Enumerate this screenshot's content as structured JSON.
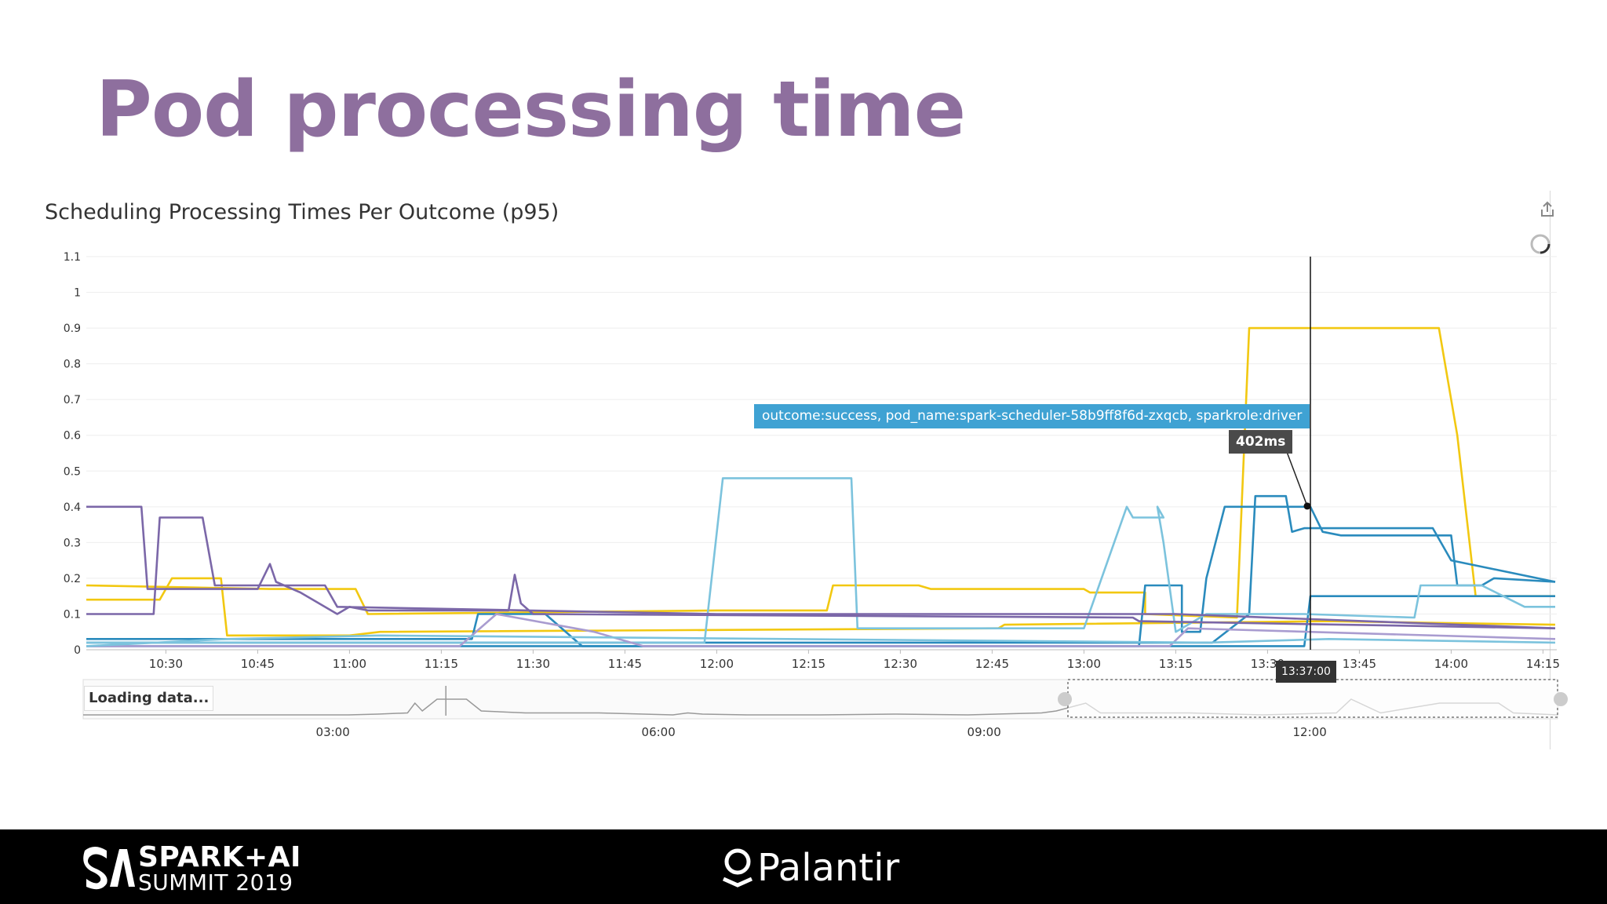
{
  "slide": {
    "title": "Pod processing time"
  },
  "panel": {
    "title": "Scheduling Processing Times Per Outcome (p95)",
    "tooltip_series": "outcome:success, pod_name:spark-scheduler-58b9ff8f6d-zxqcb, sparkrole:driver",
    "tooltip_value": "402ms",
    "cursor_time": "13:37:00",
    "loading_text": "Loading data...",
    "icons": {
      "export": "export-icon",
      "spinner": "loading-spinner-icon"
    }
  },
  "footer": {
    "summit_line1": "SPARK+AI",
    "summit_line2": "SUMMIT 2019",
    "brand": "Palantir",
    "background": "#000000"
  },
  "colors": {
    "title": "#8e6f9e",
    "yellow": "#f2c811",
    "blue": "#2a8bbd",
    "light_blue": "#7cc3dd",
    "purple": "#7b67a8",
    "lavender": "#a99cd0"
  },
  "chart_data": {
    "type": "line",
    "title": "Scheduling Processing Times Per Outcome (p95)",
    "xlabel": "",
    "ylabel": "",
    "ylim": [
      0,
      1.1
    ],
    "y_ticks": [
      "0",
      "0.1",
      "0.2",
      "0.3",
      "0.4",
      "0.5",
      "0.6",
      "0.7",
      "0.8",
      "0.9",
      "1",
      "1.1"
    ],
    "x_ticks": [
      "10:30",
      "10:45",
      "11:00",
      "11:15",
      "11:30",
      "11:45",
      "12:00",
      "12:15",
      "12:30",
      "12:45",
      "13:00",
      "13:15",
      "13:30",
      "13:45",
      "14:00",
      "14:15"
    ],
    "grid": true,
    "legend": "none",
    "cursor": {
      "time": "13:37",
      "value": 0.402
    },
    "navigator_ticks": [
      "03:00",
      "06:00",
      "09:00",
      "12:00"
    ],
    "series": [
      {
        "color": "#f2c811",
        "points": [
          [
            "10:17",
            0.18
          ],
          [
            "10:47",
            0.17
          ],
          [
            "11:01",
            0.17
          ],
          [
            "11:03",
            0.1
          ],
          [
            "12:00",
            0.11
          ],
          [
            "12:18",
            0.11
          ],
          [
            "12:19",
            0.18
          ],
          [
            "12:33",
            0.18
          ],
          [
            "12:35",
            0.17
          ],
          [
            "13:00",
            0.17
          ],
          [
            "13:01",
            0.16
          ],
          [
            "13:10",
            0.16
          ],
          [
            "13:10",
            0.1
          ],
          [
            "13:25",
            0.09
          ],
          [
            "13:27",
            0.9
          ],
          [
            "13:58",
            0.9
          ],
          [
            "14:01",
            0.6
          ],
          [
            "14:04",
            0.15
          ],
          [
            "14:17",
            0.15
          ]
        ]
      },
      {
        "color": "#f2c811",
        "points": [
          [
            "10:17",
            0.14
          ],
          [
            "10:29",
            0.14
          ],
          [
            "10:31",
            0.2
          ],
          [
            "10:39",
            0.2
          ],
          [
            "10:40",
            0.04
          ],
          [
            "11:00",
            0.04
          ],
          [
            "11:05",
            0.05
          ],
          [
            "12:46",
            0.06
          ],
          [
            "12:47",
            0.07
          ],
          [
            "13:40",
            0.08
          ],
          [
            "14:17",
            0.07
          ]
        ]
      },
      {
        "color": "#2a8bbd",
        "points": [
          [
            "10:17",
            0.03
          ],
          [
            "11:20",
            0.03
          ],
          [
            "11:21",
            0.1
          ],
          [
            "11:32",
            0.1
          ],
          [
            "11:38",
            0.01
          ],
          [
            "13:09",
            0.01
          ],
          [
            "13:10",
            0.18
          ],
          [
            "13:16",
            0.18
          ],
          [
            "13:16",
            0.05
          ],
          [
            "13:19",
            0.05
          ],
          [
            "13:20",
            0.2
          ],
          [
            "13:23",
            0.4
          ],
          [
            "13:33",
            0.4
          ],
          [
            "13:36",
            0.4
          ],
          [
            "13:37",
            0.4
          ],
          [
            "13:39",
            0.33
          ],
          [
            "13:42",
            0.32
          ],
          [
            "14:00",
            0.32
          ],
          [
            "14:01",
            0.18
          ],
          [
            "14:05",
            0.18
          ],
          [
            "14:07",
            0.2
          ],
          [
            "14:17",
            0.19
          ]
        ]
      },
      {
        "color": "#2a8bbd",
        "points": [
          [
            "10:17",
            0.02
          ],
          [
            "13:21",
            0.02
          ],
          [
            "13:27",
            0.1
          ],
          [
            "13:28",
            0.43
          ],
          [
            "13:33",
            0.43
          ],
          [
            "13:34",
            0.33
          ],
          [
            "13:36",
            0.34
          ],
          [
            "13:37",
            0.34
          ],
          [
            "13:57",
            0.34
          ],
          [
            "14:00",
            0.25
          ],
          [
            "14:17",
            0.19
          ]
        ]
      },
      {
        "color": "#2a8bbd",
        "points": [
          [
            "10:17",
            0.01
          ],
          [
            "13:36",
            0.01
          ],
          [
            "13:37",
            0.15
          ],
          [
            "14:17",
            0.15
          ]
        ]
      },
      {
        "color": "#7cc3dd",
        "points": [
          [
            "10:17",
            0.02
          ],
          [
            "11:58",
            0.02
          ],
          [
            "12:01",
            0.48
          ],
          [
            "12:22",
            0.48
          ],
          [
            "12:23",
            0.06
          ],
          [
            "13:00",
            0.06
          ],
          [
            "13:07",
            0.4
          ],
          [
            "13:08",
            0.37
          ],
          [
            "13:13",
            0.37
          ],
          [
            "13:12",
            0.4
          ],
          [
            "13:13",
            0.3
          ],
          [
            "13:15",
            0.05
          ],
          [
            "13:20",
            0.1
          ],
          [
            "13:36",
            0.1
          ],
          [
            "13:54",
            0.09
          ],
          [
            "13:55",
            0.18
          ],
          [
            "14:05",
            0.18
          ],
          [
            "14:12",
            0.12
          ],
          [
            "14:17",
            0.12
          ]
        ]
      },
      {
        "color": "#7b67a8",
        "points": [
          [
            "10:17",
            0.4
          ],
          [
            "10:26",
            0.4
          ],
          [
            "10:27",
            0.17
          ],
          [
            "10:45",
            0.17
          ],
          [
            "10:47",
            0.24
          ],
          [
            "10:48",
            0.19
          ],
          [
            "10:52",
            0.16
          ],
          [
            "10:58",
            0.1
          ],
          [
            "11:00",
            0.12
          ],
          [
            "11:03",
            0.11
          ],
          [
            "11:26",
            0.11
          ],
          [
            "11:27",
            0.21
          ],
          [
            "11:28",
            0.13
          ],
          [
            "11:30",
            0.1
          ],
          [
            "13:08",
            0.09
          ],
          [
            "13:09",
            0.08
          ],
          [
            "14:17",
            0.06
          ]
        ]
      },
      {
        "color": "#7b67a8",
        "points": [
          [
            "10:17",
            0.1
          ],
          [
            "10:28",
            0.1
          ],
          [
            "10:29",
            0.37
          ],
          [
            "10:36",
            0.37
          ],
          [
            "10:38",
            0.18
          ],
          [
            "10:56",
            0.18
          ],
          [
            "10:58",
            0.12
          ],
          [
            "12:00",
            0.1
          ],
          [
            "13:15",
            0.1
          ],
          [
            "14:17",
            0.06
          ]
        ]
      },
      {
        "color": "#a99cd0",
        "points": [
          [
            "10:17",
            0.01
          ],
          [
            "11:18",
            0.01
          ],
          [
            "11:24",
            0.1
          ],
          [
            "11:40",
            0.05
          ],
          [
            "11:48",
            0.01
          ],
          [
            "13:14",
            0.01
          ],
          [
            "13:17",
            0.06
          ],
          [
            "14:17",
            0.03
          ]
        ]
      },
      {
        "color": "#7cc3dd",
        "points": [
          [
            "10:17",
            0.01
          ],
          [
            "10:40",
            0.03
          ],
          [
            "11:05",
            0.04
          ],
          [
            "13:20",
            0.02
          ],
          [
            "13:40",
            0.03
          ],
          [
            "14:17",
            0.02
          ]
        ]
      }
    ]
  }
}
